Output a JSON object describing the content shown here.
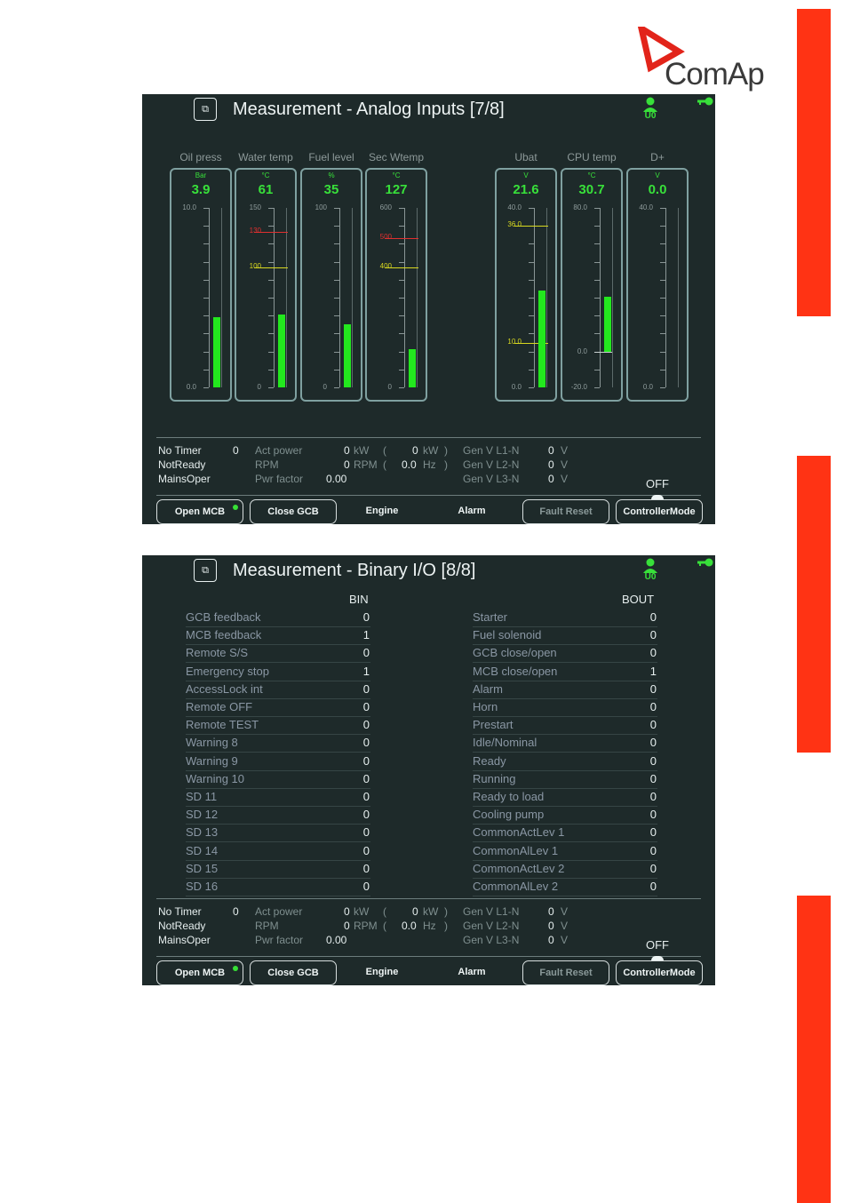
{
  "brand": {
    "logo_text": "ComAp"
  },
  "screens": [
    {
      "title": "Measurement - Analog Inputs [7/8]",
      "user_badge": "U0",
      "gauges": [
        {
          "name": "Oil press",
          "unit": "Bar",
          "value": "3.9",
          "value_num": 3.9,
          "min": 0,
          "max": 10,
          "scale_top": "10.0",
          "scale_bottom": "0.0",
          "marks": []
        },
        {
          "name": "Water temp",
          "unit": "°C",
          "value": "61",
          "value_num": 61,
          "min": 0,
          "max": 150,
          "scale_top": "150",
          "scale_bottom": "0",
          "marks": [
            {
              "label": "130",
              "value": 130,
              "color": "#e03030"
            },
            {
              "label": "100",
              "value": 100,
              "color": "#d8d820"
            }
          ]
        },
        {
          "name": "Fuel level",
          "unit": "%",
          "value": "35",
          "value_num": 35,
          "min": 0,
          "max": 100,
          "scale_top": "100",
          "scale_bottom": "0",
          "marks": []
        },
        {
          "name": "Sec Wtemp",
          "unit": "°C",
          "value": "127",
          "value_num": 127,
          "min": 0,
          "max": 600,
          "scale_top": "600",
          "scale_bottom": "0",
          "marks": [
            {
              "label": "500",
              "value": 500,
              "color": "#e03030"
            },
            {
              "label": "400",
              "value": 400,
              "color": "#d8d820"
            }
          ]
        },
        {
          "name": "Ubat",
          "unit": "V",
          "value": "21.6",
          "value_num": 21.6,
          "min": 0,
          "max": 40,
          "scale_top": "40.0",
          "scale_bottom": "0.0",
          "marks": [
            {
              "label": "36.0",
              "value": 36,
              "color": "#d8d820"
            },
            {
              "label": "10.0",
              "value": 10,
              "color": "#d8d820"
            }
          ]
        },
        {
          "name": "CPU temp",
          "unit": "°C",
          "value": "30.7",
          "value_num": 30.7,
          "min": -20,
          "max": 80,
          "scale_top": "80.0",
          "scale_bottom": "-20.0",
          "zero_label": "0.0",
          "marks": []
        },
        {
          "name": "D+",
          "unit": "V",
          "value": "0.0",
          "value_num": 0,
          "min": 0,
          "max": 40,
          "scale_top": "40.0",
          "scale_bottom": "0.0",
          "marks": []
        }
      ],
      "status": {
        "col1": [
          "No Timer",
          "NotReady",
          "MainsOper"
        ],
        "timer_value": "0",
        "act_power_label": "Act power",
        "act_power_value": "0",
        "act_power_unit": "kW",
        "paren_open": "(",
        "act_power_value2": "0",
        "act_power_unit2": "kW",
        "paren_close": ")",
        "rpm_label": "RPM",
        "rpm_value": "0",
        "rpm_unit": "RPM",
        "rpm_paren_open": "(",
        "freq_value": "0.0",
        "freq_unit": "Hz",
        "freq_paren_close": ")",
        "pwr_factor_label": "Pwr factor",
        "pwr_factor_value": "0.00",
        "gen_labels": [
          "Gen V L1-N",
          "Gen V L2-N",
          "Gen V L3-N"
        ],
        "gen_values": [
          "0",
          "0",
          "0"
        ],
        "gen_unit": "V",
        "mode": "OFF"
      },
      "buttons": {
        "open_mcb": "Open MCB",
        "close_gcb": "Close GCB",
        "engine": "Engine",
        "alarm": "Alarm",
        "fault_reset": "Fault Reset",
        "controller_mode": "ControllerMode"
      }
    },
    {
      "title": "Measurement - Binary I/O [8/8]",
      "user_badge": "U0",
      "bin_header": "BIN",
      "bout_header": "BOUT",
      "bin": [
        {
          "name": "GCB feedback",
          "value": "0"
        },
        {
          "name": "MCB feedback",
          "value": "1"
        },
        {
          "name": "Remote S/S",
          "value": "0"
        },
        {
          "name": "Emergency stop",
          "value": "1"
        },
        {
          "name": "AccessLock int",
          "value": "0"
        },
        {
          "name": "Remote OFF",
          "value": "0"
        },
        {
          "name": "Remote TEST",
          "value": "0"
        },
        {
          "name": "Warning 8",
          "value": "0"
        },
        {
          "name": "Warning 9",
          "value": "0"
        },
        {
          "name": "Warning 10",
          "value": "0"
        },
        {
          "name": "SD 11",
          "value": "0"
        },
        {
          "name": "SD 12",
          "value": "0"
        },
        {
          "name": "SD 13",
          "value": "0"
        },
        {
          "name": "SD 14",
          "value": "0"
        },
        {
          "name": "SD 15",
          "value": "0"
        },
        {
          "name": "SD 16",
          "value": "0"
        }
      ],
      "bout": [
        {
          "name": "Starter",
          "value": "0"
        },
        {
          "name": "Fuel solenoid",
          "value": "0"
        },
        {
          "name": "GCB close/open",
          "value": "0"
        },
        {
          "name": "MCB close/open",
          "value": "1"
        },
        {
          "name": "Alarm",
          "value": "0"
        },
        {
          "name": "Horn",
          "value": "0"
        },
        {
          "name": "Prestart",
          "value": "0"
        },
        {
          "name": "Idle/Nominal",
          "value": "0"
        },
        {
          "name": "Ready",
          "value": "0"
        },
        {
          "name": "Running",
          "value": "0"
        },
        {
          "name": "Ready to load",
          "value": "0"
        },
        {
          "name": "Cooling pump",
          "value": "0"
        },
        {
          "name": "CommonActLev 1",
          "value": "0"
        },
        {
          "name": "CommonAlLev 1",
          "value": "0"
        },
        {
          "name": "CommonActLev 2",
          "value": "0"
        },
        {
          "name": "CommonAlLev 2",
          "value": "0"
        }
      ],
      "status": {
        "col1": [
          "No Timer",
          "NotReady",
          "MainsOper"
        ],
        "timer_value": "0",
        "act_power_label": "Act power",
        "act_power_value": "0",
        "act_power_unit": "kW",
        "paren_open": "(",
        "act_power_value2": "0",
        "act_power_unit2": "kW",
        "paren_close": ")",
        "rpm_label": "RPM",
        "rpm_value": "0",
        "rpm_unit": "RPM",
        "rpm_paren_open": "(",
        "freq_value": "0.0",
        "freq_unit": "Hz",
        "freq_paren_close": ")",
        "pwr_factor_label": "Pwr factor",
        "pwr_factor_value": "0.00",
        "gen_labels": [
          "Gen V L1-N",
          "Gen V L2-N",
          "Gen V L3-N"
        ],
        "gen_values": [
          "0",
          "0",
          "0"
        ],
        "gen_unit": "V",
        "mode": "OFF"
      },
      "buttons": {
        "open_mcb": "Open MCB",
        "close_gcb": "Close GCB",
        "engine": "Engine",
        "alarm": "Alarm",
        "fault_reset": "Fault Reset",
        "controller_mode": "ControllerMode"
      }
    }
  ],
  "colors": {
    "accent_red": "#ff3314",
    "screen_bg": "#1e2a2a",
    "bar_green": "#23e81e",
    "value_green": "#38e03a"
  }
}
